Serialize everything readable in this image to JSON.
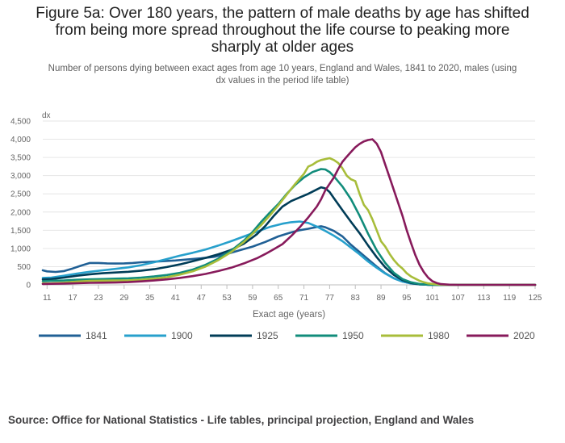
{
  "title_lines": [
    "Figure 5a: Over 180 years, the pattern of male deaths by age has shifted",
    "from being more spread throughout the life course to peaking more",
    "sharply at older ages"
  ],
  "subtitle_lines": [
    "Number of persons dying between exact ages from age 10 years, England and Wales, 1841 to 2020, males (using",
    "dx values in the period life table)"
  ],
  "source": "Source: Office for National Statistics - Life tables, principal projection, England and Wales",
  "chart_data": {
    "type": "line",
    "title": "Figure 5a: Over 180 years, the pattern of male deaths by age has shifted from being more spread throughout the life course to peaking more sharply at older ages",
    "xlabel": "Exact age (years)",
    "ylabel": "dx",
    "xlim": [
      10,
      125
    ],
    "ylim": [
      0,
      4500
    ],
    "x_ticks": [
      11,
      17,
      23,
      29,
      35,
      41,
      47,
      53,
      59,
      65,
      71,
      77,
      83,
      89,
      95,
      101,
      107,
      113,
      119,
      125
    ],
    "y_ticks": [
      0,
      500,
      1000,
      1500,
      2000,
      2500,
      3000,
      3500,
      4000,
      4500
    ],
    "y_tick_labels": [
      "0",
      "500",
      "1,000",
      "1,500",
      "2,000",
      "2,500",
      "3,000",
      "3,500",
      "4,000",
      "4,500"
    ],
    "legend_position": "bottom",
    "series": [
      {
        "name": "1841",
        "color": "#206095",
        "points": [
          [
            10,
            400
          ],
          [
            11,
            370
          ],
          [
            13,
            355
          ],
          [
            15,
            380
          ],
          [
            17,
            450
          ],
          [
            19,
            530
          ],
          [
            21,
            600
          ],
          [
            23,
            600
          ],
          [
            25,
            590
          ],
          [
            27,
            585
          ],
          [
            29,
            590
          ],
          [
            31,
            600
          ],
          [
            33,
            620
          ],
          [
            35,
            630
          ],
          [
            38,
            650
          ],
          [
            41,
            670
          ],
          [
            44,
            700
          ],
          [
            47,
            730
          ],
          [
            50,
            770
          ],
          [
            53,
            850
          ],
          [
            56,
            950
          ],
          [
            59,
            1050
          ],
          [
            62,
            1180
          ],
          [
            65,
            1330
          ],
          [
            68,
            1440
          ],
          [
            70,
            1500
          ],
          [
            72,
            1540
          ],
          [
            74,
            1590
          ],
          [
            75,
            1610
          ],
          [
            76,
            1580
          ],
          [
            78,
            1480
          ],
          [
            80,
            1330
          ],
          [
            82,
            1100
          ],
          [
            84,
            900
          ],
          [
            86,
            700
          ],
          [
            88,
            500
          ],
          [
            90,
            320
          ],
          [
            92,
            180
          ],
          [
            94,
            90
          ],
          [
            96,
            40
          ],
          [
            98,
            15
          ],
          [
            100,
            5
          ],
          [
            102,
            0
          ],
          [
            125,
            0
          ]
        ]
      },
      {
        "name": "1900",
        "color": "#27a0cc",
        "points": [
          [
            10,
            190
          ],
          [
            12,
            200
          ],
          [
            15,
            250
          ],
          [
            18,
            310
          ],
          [
            21,
            360
          ],
          [
            24,
            400
          ],
          [
            27,
            440
          ],
          [
            30,
            480
          ],
          [
            33,
            540
          ],
          [
            36,
            620
          ],
          [
            39,
            710
          ],
          [
            42,
            800
          ],
          [
            45,
            880
          ],
          [
            48,
            970
          ],
          [
            51,
            1080
          ],
          [
            54,
            1200
          ],
          [
            57,
            1330
          ],
          [
            60,
            1460
          ],
          [
            63,
            1590
          ],
          [
            66,
            1680
          ],
          [
            68,
            1720
          ],
          [
            70,
            1740
          ],
          [
            72,
            1700
          ],
          [
            74,
            1600
          ],
          [
            76,
            1480
          ],
          [
            78,
            1350
          ],
          [
            80,
            1200
          ],
          [
            82,
            1020
          ],
          [
            84,
            840
          ],
          [
            86,
            640
          ],
          [
            88,
            470
          ],
          [
            90,
            310
          ],
          [
            92,
            180
          ],
          [
            94,
            90
          ],
          [
            96,
            40
          ],
          [
            98,
            15
          ],
          [
            100,
            5
          ],
          [
            102,
            0
          ],
          [
            125,
            0
          ]
        ]
      },
      {
        "name": "1925",
        "color": "#003c57",
        "points": [
          [
            10,
            150
          ],
          [
            12,
            160
          ],
          [
            15,
            200
          ],
          [
            18,
            250
          ],
          [
            21,
            290
          ],
          [
            24,
            320
          ],
          [
            27,
            340
          ],
          [
            30,
            360
          ],
          [
            33,
            390
          ],
          [
            36,
            430
          ],
          [
            39,
            490
          ],
          [
            42,
            560
          ],
          [
            45,
            650
          ],
          [
            48,
            740
          ],
          [
            51,
            840
          ],
          [
            54,
            960
          ],
          [
            57,
            1130
          ],
          [
            60,
            1390
          ],
          [
            62,
            1620
          ],
          [
            64,
            1900
          ],
          [
            66,
            2150
          ],
          [
            68,
            2300
          ],
          [
            70,
            2400
          ],
          [
            72,
            2500
          ],
          [
            74,
            2620
          ],
          [
            75,
            2680
          ],
          [
            76,
            2650
          ],
          [
            77,
            2550
          ],
          [
            78,
            2380
          ],
          [
            80,
            2050
          ],
          [
            82,
            1730
          ],
          [
            84,
            1420
          ],
          [
            86,
            1080
          ],
          [
            88,
            760
          ],
          [
            90,
            480
          ],
          [
            92,
            270
          ],
          [
            94,
            130
          ],
          [
            96,
            50
          ],
          [
            98,
            15
          ],
          [
            100,
            5
          ],
          [
            102,
            0
          ],
          [
            125,
            0
          ]
        ]
      },
      {
        "name": "1950",
        "color": "#118c7b",
        "points": [
          [
            10,
            100
          ],
          [
            12,
            110
          ],
          [
            15,
            120
          ],
          [
            18,
            140
          ],
          [
            21,
            150
          ],
          [
            24,
            160
          ],
          [
            27,
            170
          ],
          [
            30,
            180
          ],
          [
            33,
            200
          ],
          [
            36,
            230
          ],
          [
            39,
            270
          ],
          [
            42,
            330
          ],
          [
            45,
            420
          ],
          [
            48,
            550
          ],
          [
            51,
            720
          ],
          [
            54,
            940
          ],
          [
            57,
            1220
          ],
          [
            59,
            1450
          ],
          [
            61,
            1730
          ],
          [
            63,
            1980
          ],
          [
            65,
            2220
          ],
          [
            67,
            2500
          ],
          [
            69,
            2750
          ],
          [
            71,
            2950
          ],
          [
            73,
            3100
          ],
          [
            75,
            3180
          ],
          [
            76,
            3170
          ],
          [
            77,
            3100
          ],
          [
            78,
            2980
          ],
          [
            80,
            2700
          ],
          [
            82,
            2350
          ],
          [
            84,
            1900
          ],
          [
            86,
            1400
          ],
          [
            88,
            950
          ],
          [
            90,
            600
          ],
          [
            92,
            330
          ],
          [
            94,
            160
          ],
          [
            96,
            70
          ],
          [
            98,
            25
          ],
          [
            100,
            5
          ],
          [
            102,
            0
          ],
          [
            125,
            0
          ]
        ]
      },
      {
        "name": "1980",
        "color": "#a8bd3a",
        "points": [
          [
            10,
            40
          ],
          [
            12,
            45
          ],
          [
            15,
            60
          ],
          [
            18,
            90
          ],
          [
            21,
            110
          ],
          [
            24,
            115
          ],
          [
            27,
            120
          ],
          [
            30,
            125
          ],
          [
            33,
            140
          ],
          [
            36,
            170
          ],
          [
            39,
            210
          ],
          [
            42,
            280
          ],
          [
            45,
            370
          ],
          [
            48,
            500
          ],
          [
            51,
            680
          ],
          [
            54,
            900
          ],
          [
            57,
            1180
          ],
          [
            59,
            1400
          ],
          [
            61,
            1640
          ],
          [
            63,
            1900
          ],
          [
            65,
            2180
          ],
          [
            67,
            2480
          ],
          [
            69,
            2780
          ],
          [
            71,
            3050
          ],
          [
            72,
            3250
          ],
          [
            73,
            3300
          ],
          [
            74,
            3380
          ],
          [
            75,
            3430
          ],
          [
            77,
            3480
          ],
          [
            78,
            3430
          ],
          [
            79,
            3350
          ],
          [
            80,
            3200
          ],
          [
            81,
            3000
          ],
          [
            82,
            2900
          ],
          [
            83,
            2850
          ],
          [
            84,
            2500
          ],
          [
            85,
            2200
          ],
          [
            86,
            2050
          ],
          [
            87,
            1800
          ],
          [
            88,
            1500
          ],
          [
            89,
            1200
          ],
          [
            90,
            1050
          ],
          [
            91,
            850
          ],
          [
            92,
            680
          ],
          [
            93,
            550
          ],
          [
            94,
            450
          ],
          [
            95,
            320
          ],
          [
            96,
            230
          ],
          [
            97,
            170
          ],
          [
            98,
            110
          ],
          [
            99,
            70
          ],
          [
            100,
            40
          ],
          [
            102,
            10
          ],
          [
            104,
            2
          ],
          [
            106,
            0
          ],
          [
            125,
            0
          ]
        ]
      },
      {
        "name": "2020",
        "color": "#871a5b",
        "points": [
          [
            10,
            25
          ],
          [
            12,
            28
          ],
          [
            15,
            35
          ],
          [
            18,
            45
          ],
          [
            21,
            55
          ],
          [
            24,
            60
          ],
          [
            27,
            65
          ],
          [
            30,
            75
          ],
          [
            33,
            95
          ],
          [
            36,
            120
          ],
          [
            39,
            150
          ],
          [
            42,
            190
          ],
          [
            45,
            240
          ],
          [
            48,
            300
          ],
          [
            51,
            380
          ],
          [
            54,
            470
          ],
          [
            57,
            590
          ],
          [
            60,
            730
          ],
          [
            62,
            850
          ],
          [
            64,
            980
          ],
          [
            66,
            1120
          ],
          [
            68,
            1340
          ],
          [
            70,
            1580
          ],
          [
            72,
            1850
          ],
          [
            74,
            2150
          ],
          [
            75,
            2350
          ],
          [
            76,
            2600
          ],
          [
            78,
            2950
          ],
          [
            79,
            3180
          ],
          [
            80,
            3380
          ],
          [
            81,
            3520
          ],
          [
            82,
            3650
          ],
          [
            83,
            3780
          ],
          [
            84,
            3870
          ],
          [
            85,
            3940
          ],
          [
            86,
            3980
          ],
          [
            87,
            4000
          ],
          [
            88,
            3880
          ],
          [
            89,
            3650
          ],
          [
            90,
            3300
          ],
          [
            91,
            2950
          ],
          [
            92,
            2600
          ],
          [
            93,
            2250
          ],
          [
            94,
            1900
          ],
          [
            95,
            1500
          ],
          [
            96,
            1150
          ],
          [
            97,
            820
          ],
          [
            98,
            550
          ],
          [
            99,
            350
          ],
          [
            100,
            200
          ],
          [
            101,
            100
          ],
          [
            102,
            50
          ],
          [
            103,
            20
          ],
          [
            105,
            5
          ],
          [
            107,
            0
          ],
          [
            125,
            0
          ]
        ]
      }
    ]
  }
}
